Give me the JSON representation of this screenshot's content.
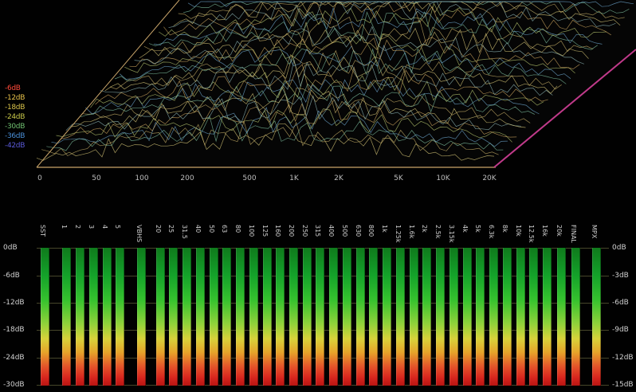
{
  "spectrum": {
    "db_labels": [
      {
        "text": "-6dB",
        "color": "#ff4a3a"
      },
      {
        "text": "-12dB",
        "color": "#e8c24a"
      },
      {
        "text": "-18dB",
        "color": "#d8c24a"
      },
      {
        "text": "-24dB",
        "color": "#c8c84a"
      },
      {
        "text": "-30dB",
        "color": "#6fbf6f"
      },
      {
        "text": "-36dB",
        "color": "#4a8fd8"
      },
      {
        "text": "-42dB",
        "color": "#5a5ad8"
      }
    ],
    "freq_labels": [
      "0",
      "50",
      "100",
      "200",
      "500",
      "1K",
      "2K",
      "5K",
      "10K",
      "20K"
    ]
  },
  "meters": {
    "names": [
      "SST",
      "1",
      "2",
      "3",
      "4",
      "5",
      "VBHS",
      "20",
      "25",
      "31.5",
      "40",
      "50",
      "63",
      "80",
      "100",
      "125",
      "160",
      "200",
      "250",
      "315",
      "400",
      "500",
      "630",
      "800",
      "1k",
      "1.25k",
      "1.6k",
      "2k",
      "2.5k",
      "3.15k",
      "4k",
      "5k",
      "6.3k",
      "8k",
      "10k",
      "12.5k",
      "16k",
      "20k",
      "FINAL",
      "MPX"
    ],
    "scale_left": [
      "0dB",
      "-6dB",
      "-12dB",
      "-18dB",
      "-24dB",
      "-30dB"
    ],
    "scale_right": [
      "0dB",
      "-3dB",
      "-6dB",
      "-9dB",
      "-12dB",
      "-15dB"
    ]
  }
}
